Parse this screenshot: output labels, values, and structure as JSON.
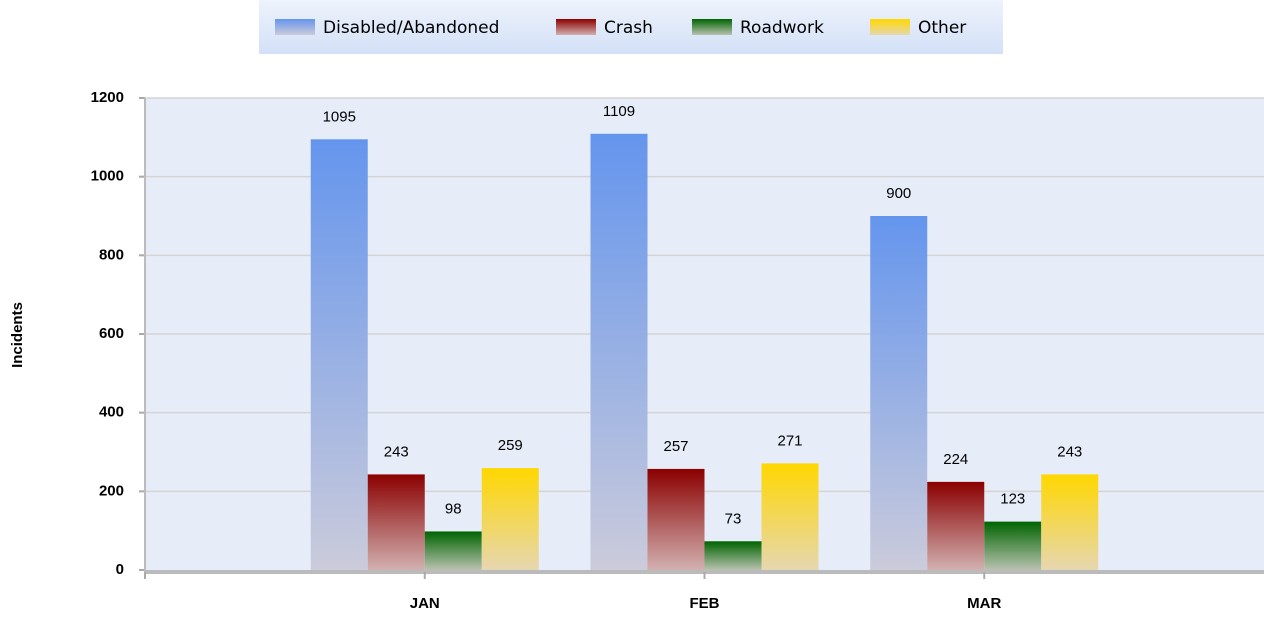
{
  "chart_data": {
    "type": "bar",
    "categories": [
      "JAN",
      "FEB",
      "MAR"
    ],
    "series": [
      {
        "name": "Disabled/Abandoned",
        "color": "#6495ed",
        "values": [
          1095,
          1109,
          900
        ]
      },
      {
        "name": "Crash",
        "color": "#8b0000",
        "values": [
          243,
          257,
          224
        ]
      },
      {
        "name": "Roadwork",
        "color": "#006400",
        "values": [
          98,
          73,
          123
        ]
      },
      {
        "name": "Other",
        "color": "#ffd700",
        "values": [
          259,
          271,
          243
        ]
      }
    ],
    "ylabel": "Incidents",
    "ylim": [
      0,
      1200
    ],
    "yticks": [
      0,
      200,
      400,
      600,
      800,
      1000,
      1200
    ],
    "grid": true,
    "legend": "top"
  }
}
